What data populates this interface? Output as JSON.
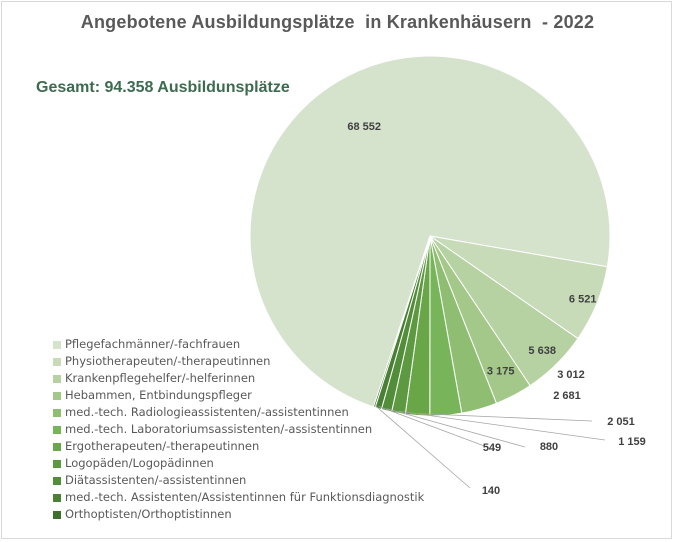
{
  "chart_data": {
    "type": "pie",
    "title": "Angebotene Ausbildungsplätze  in Krankenhäusern  - 2022",
    "subtitle": "Gesamt: 94.358 Ausbildunsplätze",
    "categories": [
      "Pflegefachmänner/-fachfrauen",
      "Physiotherapeuten/-therapeutinnen",
      "Krankenpflegehelfer/-helferinnen",
      "Hebammen, Entbindungspfleger",
      "med.-tech. Radiologieassistenten/-assistentinnen",
      "med.-tech. Laboratoriumsassistenten/-assistentinnen",
      "Ergotherapeuten/-therapeutinnen",
      "Logopäden/Logopädinnen",
      "Diätassistenten/-assistentinnen",
      "med.-tech. Assistenten/Assistentinnen für Funktionsdiagnostik",
      "Orthoptisten/Orthoptistinnen"
    ],
    "values": [
      68552,
      6521,
      5638,
      3175,
      3012,
      2681,
      2051,
      1159,
      880,
      549,
      140
    ],
    "value_labels": [
      "68 552",
      "6 521",
      "5 638",
      "3 175",
      "3 012",
      "2 681",
      "2 051",
      "1 159",
      "880",
      "549",
      "140"
    ],
    "colors": [
      "#d6e3cc",
      "#c8dbb9",
      "#b7d2a2",
      "#a3c889",
      "#8fbe73",
      "#78b55a",
      "#68a647",
      "#5c9940",
      "#528d39",
      "#4a8034",
      "#3f702b"
    ],
    "legend_position": "left-bottom"
  }
}
